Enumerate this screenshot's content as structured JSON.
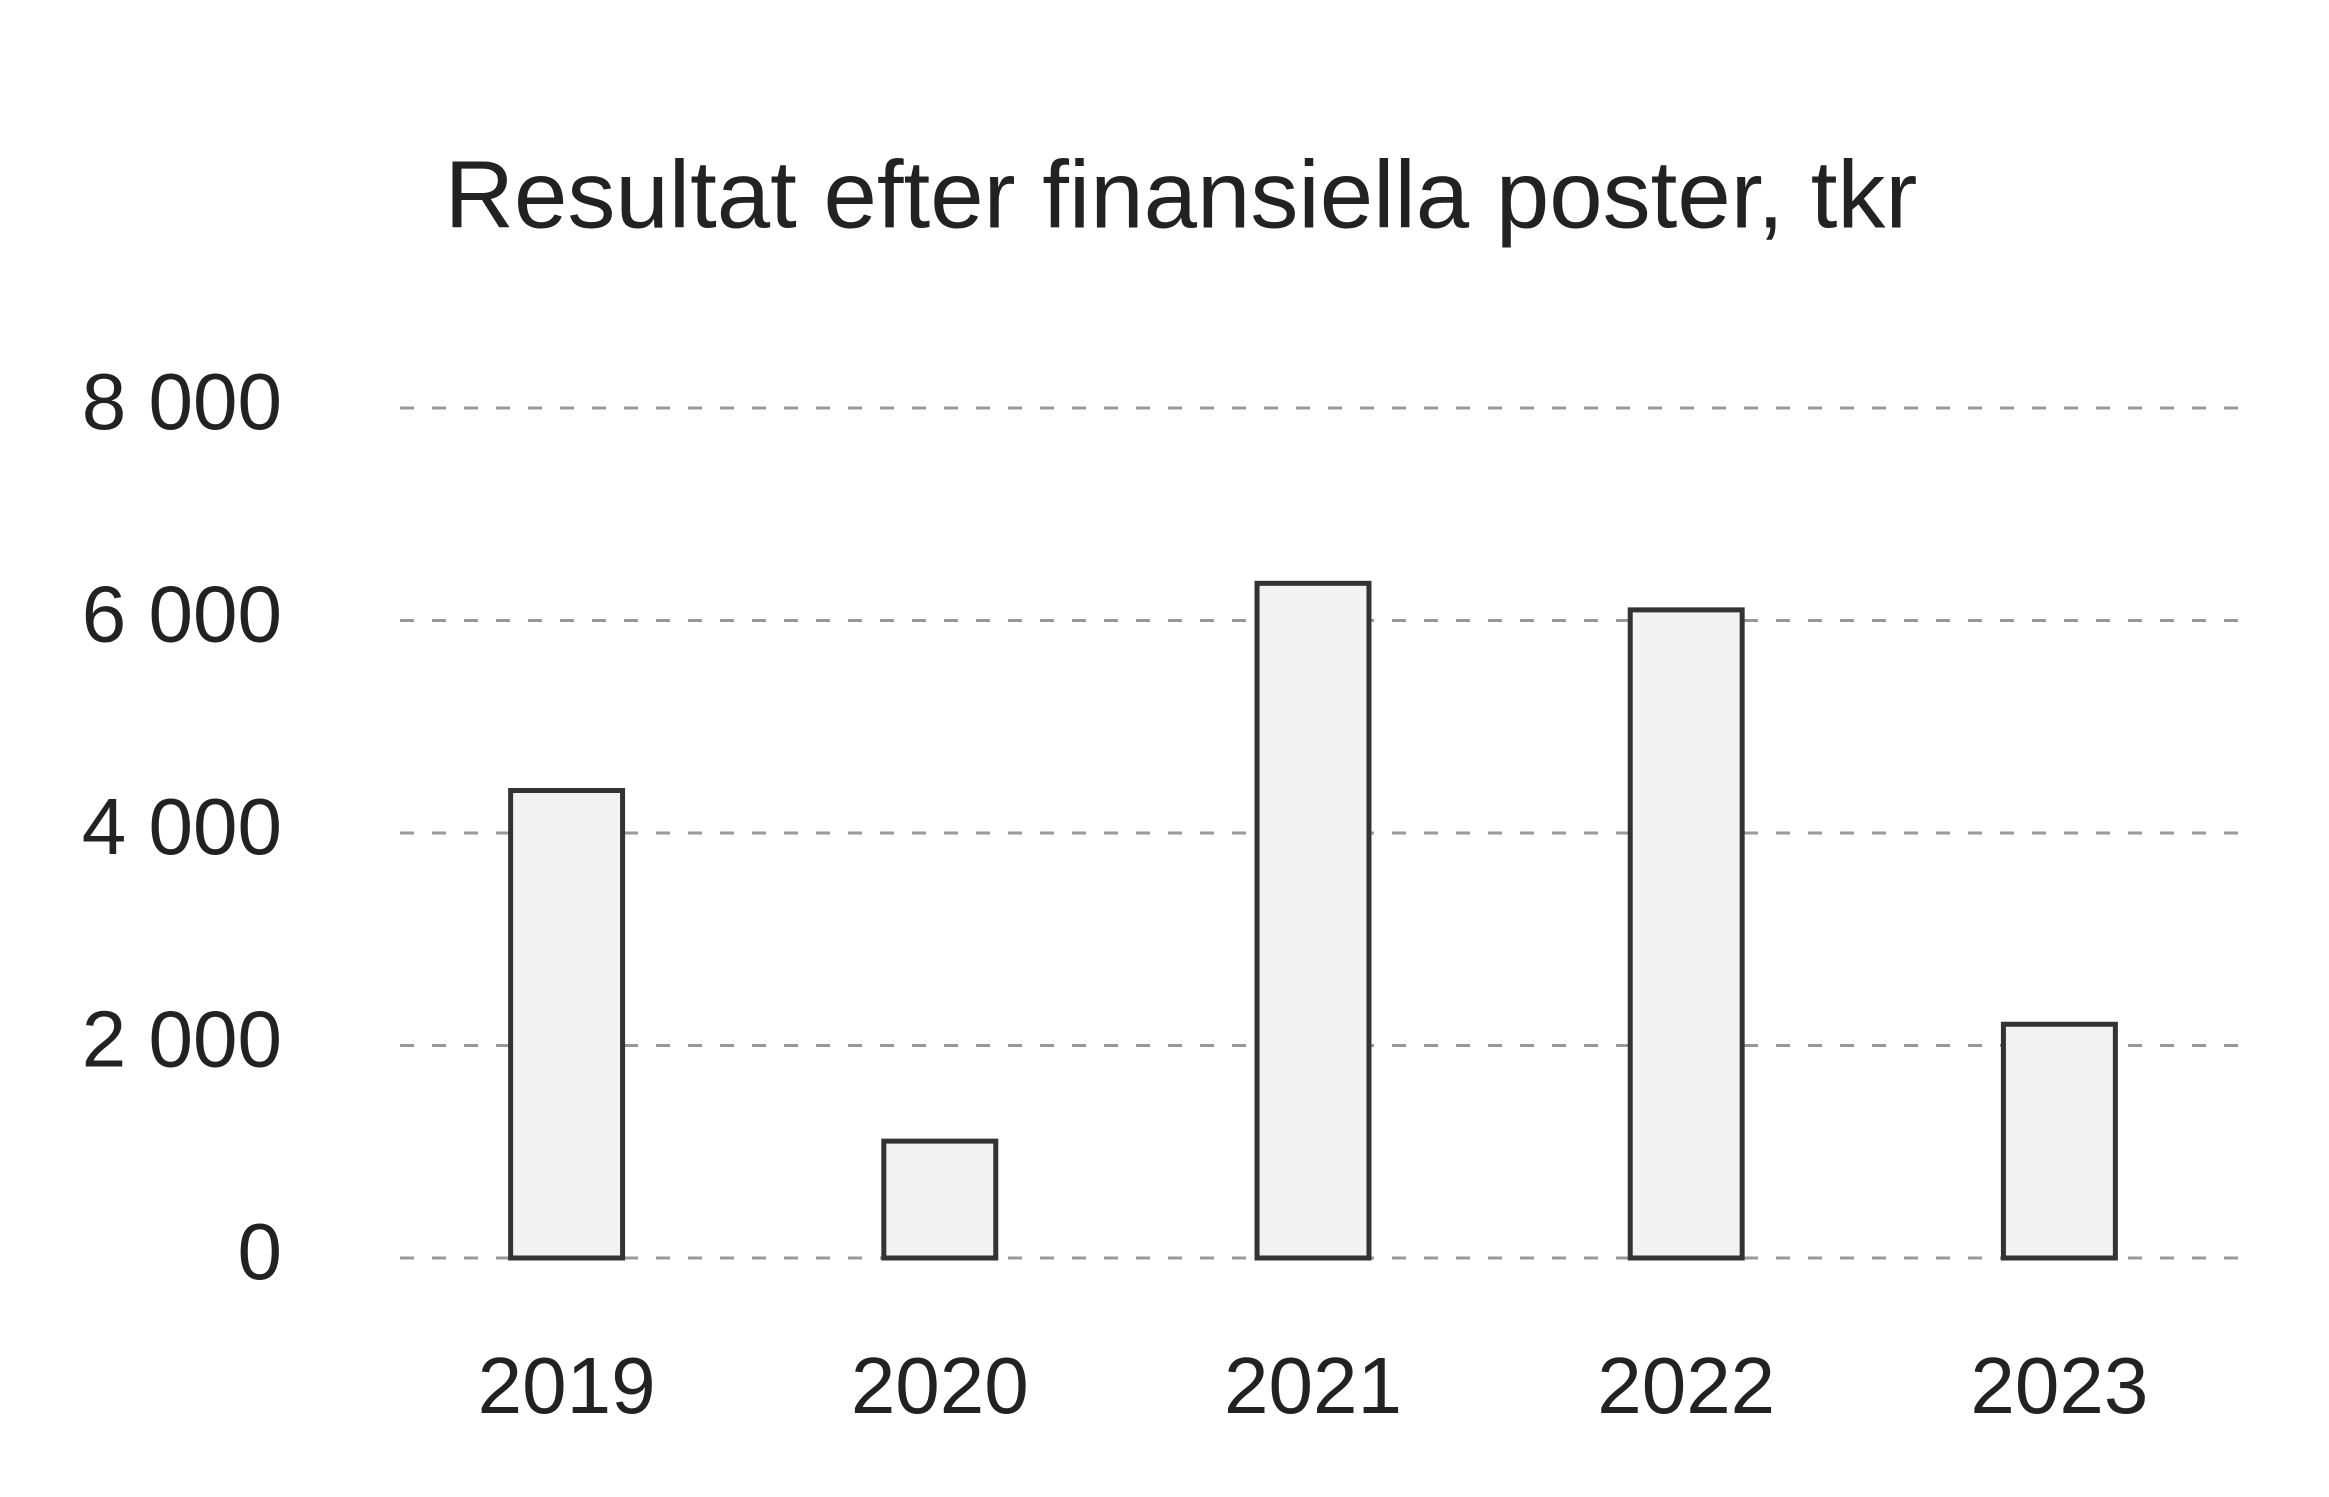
{
  "chart_data": {
    "type": "bar",
    "title": "Resultat efter finansiella poster, tkr",
    "categories": [
      "2019",
      "2020",
      "2021",
      "2022",
      "2023"
    ],
    "values": [
      4400,
      1100,
      6350,
      6100,
      2200
    ],
    "color": "#f2f2f2",
    "ylim": [
      0,
      8000
    ],
    "yticks": [
      0,
      {
        "value": 2000,
        "label": "2 000"
      },
      {
        "value": 4000,
        "label": "4 000"
      },
      {
        "value": 6000,
        "label": "6 000"
      },
      {
        "value": 8000,
        "label": "8 000"
      }
    ],
    "grid": true
  }
}
